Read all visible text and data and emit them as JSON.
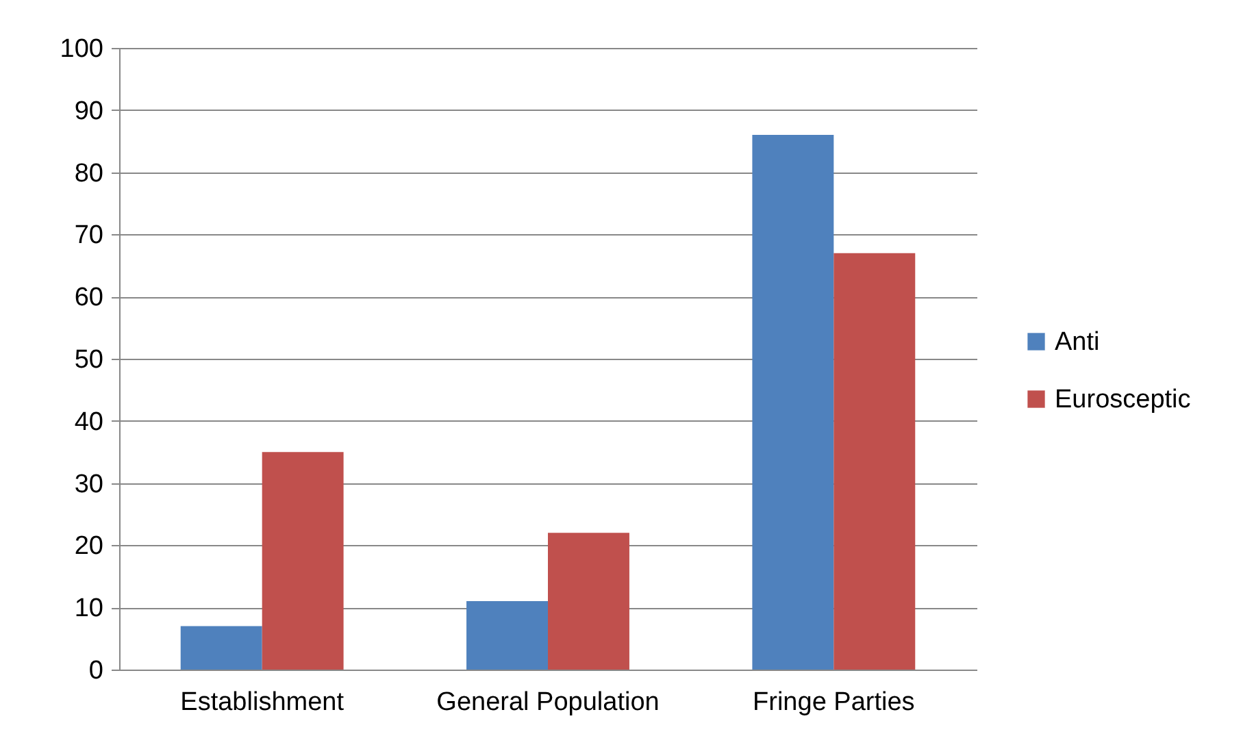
{
  "chart_data": {
    "type": "bar",
    "categories": [
      "Establishment",
      "General Population",
      "Fringe Parties"
    ],
    "series": [
      {
        "name": "Anti",
        "color": "#4f81bd",
        "values": [
          7,
          11,
          86
        ]
      },
      {
        "name": "Eurosceptic",
        "color": "#c0504d",
        "values": [
          35,
          22,
          67
        ]
      }
    ],
    "ylim": [
      0,
      100
    ],
    "yticks": [
      0,
      10,
      20,
      30,
      40,
      50,
      60,
      70,
      80,
      90,
      100
    ],
    "grid": "y",
    "legend": "right"
  }
}
